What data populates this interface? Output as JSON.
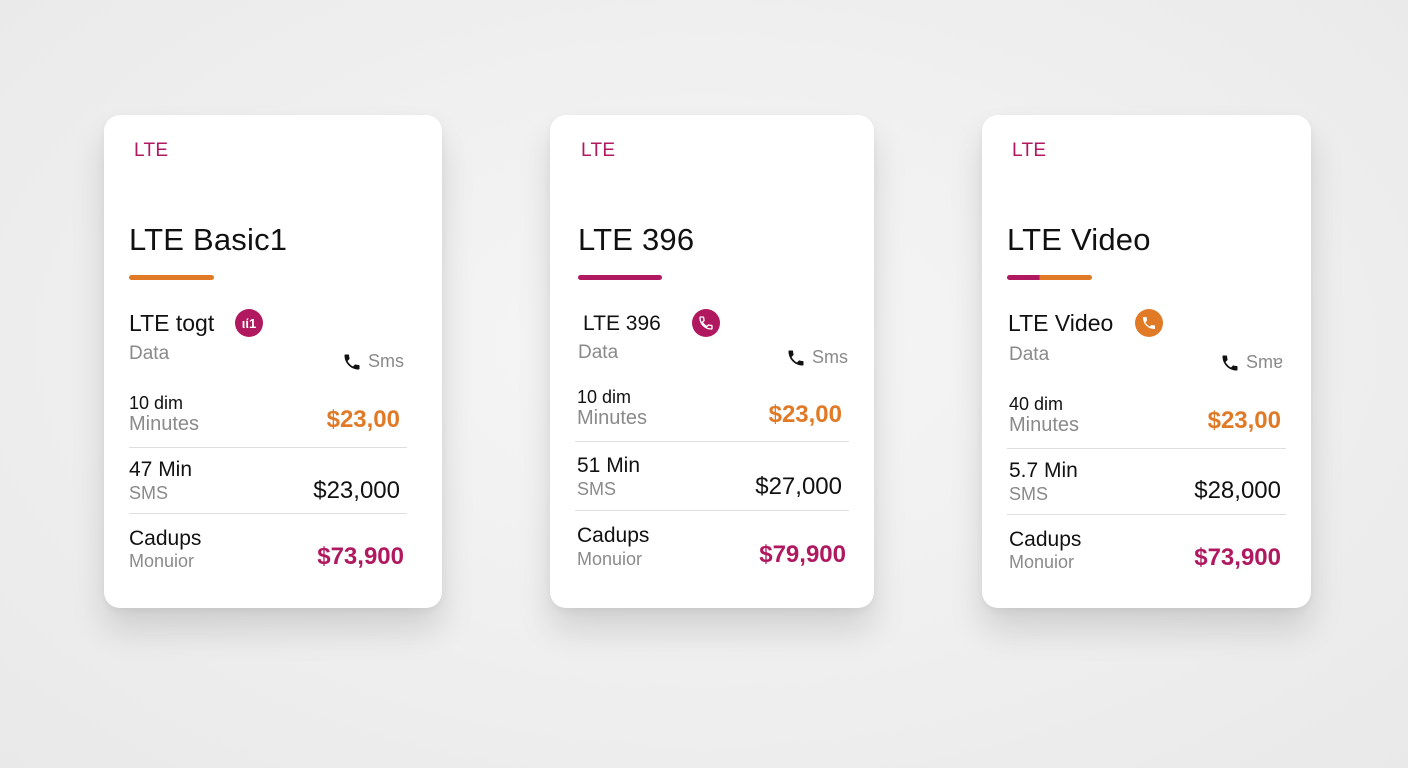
{
  "colors": {
    "accent_purple": "#b0185f",
    "accent_orange": "#e07a26"
  },
  "plans": [
    {
      "tag": "LTE",
      "title": "LTE Basic1",
      "subtitle": "LTE togt",
      "badge_text": "ιί1",
      "data_label": "Data",
      "sms_label": "Sms",
      "rows": [
        {
          "line1": "10 dim",
          "line2": "Minutes",
          "price": "$23,00"
        },
        {
          "line1": "47 Min",
          "line2": "SMS",
          "price": "$23,000"
        },
        {
          "line1": "Cadups",
          "line2": "Monuior",
          "price": "$73,900"
        }
      ]
    },
    {
      "tag": "LTE",
      "title": "LTE 396",
      "subtitle": "LTE 396",
      "data_label": "Data",
      "sms_label": "Sms",
      "rows": [
        {
          "line1": "10 dim",
          "line2": "Minutes",
          "price": "$23,00"
        },
        {
          "line1": "51 Min",
          "line2": "SMS",
          "price": "$27,000"
        },
        {
          "line1": "Cadups",
          "line2": "Monuior",
          "price": "$79,900"
        }
      ]
    },
    {
      "tag": "LTE",
      "title": "LTE Video",
      "subtitle": "LTE Video",
      "data_label": "Data",
      "sms_label": "Smɐ",
      "rows": [
        {
          "line1": "40 dim",
          "line2": "Minutes",
          "price": "$23,00"
        },
        {
          "line1": "5.7 Min",
          "line2": "SMS",
          "price": "$28,000"
        },
        {
          "line1": "Cadups",
          "line2": "Monuior",
          "price": "$73,900"
        }
      ]
    }
  ]
}
